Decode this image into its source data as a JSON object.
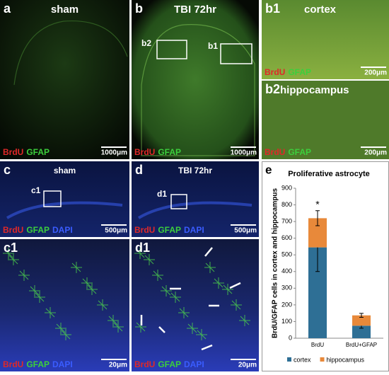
{
  "panels": [
    {
      "id": "a",
      "title": "sham",
      "stains": [
        {
          "text": "BrdU",
          "color": "#e02828"
        },
        {
          "text": "GFAP",
          "color": "#3ccf3c"
        }
      ],
      "scale": "1000μm"
    },
    {
      "id": "b",
      "title": "TBI 72hr",
      "stains": [
        {
          "text": "BrdU",
          "color": "#e02828"
        },
        {
          "text": "GFAP",
          "color": "#3ccf3c"
        }
      ],
      "scale": "1000μm",
      "boxes": [
        "b2",
        "b1"
      ]
    },
    {
      "id": "b1",
      "title": "cortex",
      "stains": [
        {
          "text": "BrdU",
          "color": "#e02828"
        },
        {
          "text": "GFAP",
          "color": "#3ccf3c"
        }
      ],
      "scale": "200μm"
    },
    {
      "id": "b2",
      "title": "hippocampus",
      "stains": [
        {
          "text": "BrdU",
          "color": "#e02828"
        },
        {
          "text": "GFAP",
          "color": "#3ccf3c"
        }
      ],
      "scale": "200μm"
    },
    {
      "id": "c",
      "title": "sham",
      "stains": [
        {
          "text": "BrdU",
          "color": "#e02828"
        },
        {
          "text": "GFAP",
          "color": "#3ccf3c"
        },
        {
          "text": "DAPI",
          "color": "#3a5cff"
        }
      ],
      "scale": "500μm",
      "boxes": [
        "c1"
      ]
    },
    {
      "id": "d",
      "title": "TBI 72hr",
      "stains": [
        {
          "text": "BrdU",
          "color": "#e02828"
        },
        {
          "text": "GFAP",
          "color": "#3ccf3c"
        },
        {
          "text": "DAPI",
          "color": "#3a5cff"
        }
      ],
      "scale": "500μm",
      "boxes": [
        "d1"
      ]
    },
    {
      "id": "c1",
      "stains": [
        {
          "text": "BrdU",
          "color": "#e02828"
        },
        {
          "text": "GFAP",
          "color": "#3ccf3c"
        },
        {
          "text": "DAPI",
          "color": "#3a5cff"
        }
      ],
      "scale": "20μm"
    },
    {
      "id": "d1",
      "stains": [
        {
          "text": "BrdU",
          "color": "#e02828"
        },
        {
          "text": "GFAP",
          "color": "#3ccf3c"
        },
        {
          "text": "DAPI",
          "color": "#3a5cff"
        }
      ],
      "scale": "20μm"
    }
  ],
  "chart_panel": "e",
  "chart_data": {
    "type": "stacked-bar",
    "title": "Proliferative astrocyte",
    "ylabel": "BrdU/GFAP cells in cortex and hippocampus",
    "categories": [
      "BrdU",
      "BrdU+GFAP"
    ],
    "series": [
      {
        "name": "cortex",
        "color": "#2e6f95",
        "values": [
          545,
          75
        ],
        "errors": [
          145,
          15
        ]
      },
      {
        "name": "hippocampus",
        "color": "#e8893a",
        "values": [
          175,
          62
        ],
        "errors": [
          45,
          12
        ]
      }
    ],
    "annotation": "*",
    "ylim": [
      0,
      900
    ],
    "yticks": [
      0,
      100,
      200,
      300,
      400,
      500,
      600,
      700,
      800,
      900
    ],
    "legend": "bottom"
  }
}
